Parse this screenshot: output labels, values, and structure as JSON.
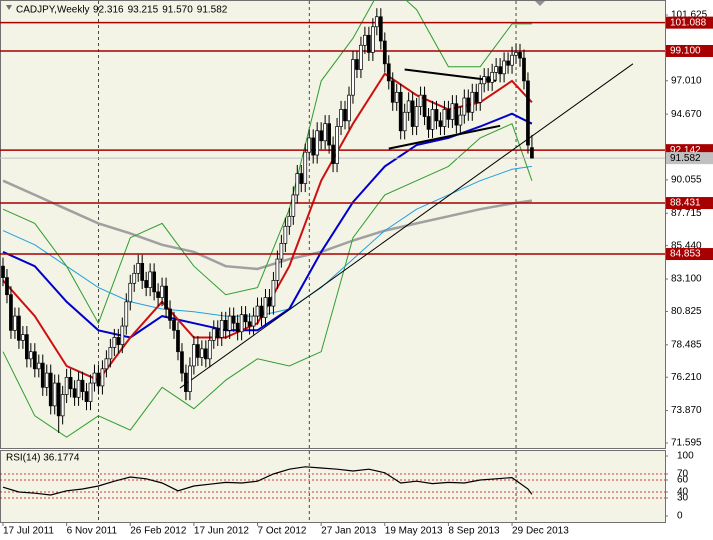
{
  "chart_data": {
    "type": "candlestick",
    "title": "CADJPY,Weekly",
    "header_values": [
      92.316,
      93.215,
      {
        "value": 91.57,
        "label": "91.570"
      },
      91.582
    ],
    "xlim": [
      -0.754,
      166.46
    ],
    "xticks": [
      {
        "value": 0,
        "label": "17 Jul 2011"
      },
      {
        "value": 16,
        "label": "6 Nov 2011"
      },
      {
        "value": 32,
        "label": "26 Feb 2012"
      },
      {
        "value": 48,
        "label": "17 Jun 2012"
      },
      {
        "value": 64,
        "label": "7 Oct 2012"
      },
      {
        "value": 80,
        "label": "27 Jan 2013"
      },
      {
        "value": 96,
        "label": "19 May 2013"
      },
      {
        "value": 112,
        "label": "8 Sep 2013"
      },
      {
        "value": 128,
        "label": "29 Dec 2013"
      }
    ],
    "xgrid": [
      24,
      77,
      129
    ],
    "ylim": [
      71.244,
      102.677
    ],
    "yticks": [
      101.625,
      {
        "value": 97.01,
        "label": "97.010"
      },
      {
        "value": 94.67,
        "label": "94.670"
      },
      90.055,
      87.715,
      {
        "value": 85.44,
        "label": "85.440"
      },
      {
        "value": 83.1,
        "label": "83.100"
      },
      80.825,
      78.485,
      {
        "value": 76.21,
        "label": "76.210"
      },
      {
        "value": 73.87,
        "label": "73.870"
      },
      71.595
    ],
    "open": [
      84.0,
      83.2,
      82.0,
      79.5,
      80.5,
      78.8,
      79.2,
      77.5,
      78.0,
      76.8,
      77.2,
      75.5,
      76.5,
      74.2,
      75.8,
      73.5,
      75.0,
      76.2,
      75.4,
      74.8,
      76.0,
      75.2,
      74.5,
      75.8,
      76.5,
      75.6,
      76.8,
      77.5,
      78.3,
      79.0,
      78.5,
      79.8,
      81.5,
      82.8,
      83.5,
      84.2,
      83.0,
      82.5,
      83.6,
      82.2,
      81.8,
      82.6,
      81.0,
      80.2,
      79.5,
      78.0,
      76.5,
      75.2,
      77.0,
      78.5,
      77.6,
      78.2,
      77.5,
      78.8,
      79.6,
      79.0,
      80.2,
      79.5,
      80.5,
      80.0,
      79.4,
      80.6,
      80.1,
      79.8,
      80.5,
      81.2,
      80.4,
      81.8,
      81.2,
      83.0,
      84.5,
      85.6,
      86.8,
      87.5,
      89.0,
      90.5,
      89.8,
      92.0,
      93.0,
      91.8,
      93.5,
      92.8,
      94.0,
      92.5,
      91.2,
      93.8,
      95.0,
      94.2,
      96.0,
      98.5,
      97.8,
      99.5,
      100.2,
      99.0,
      100.8,
      101.5,
      99.8,
      98.2,
      97.0,
      95.5,
      96.2,
      93.5,
      94.8,
      95.6,
      93.8,
      95.2,
      96.0,
      94.5,
      93.6,
      95.0,
      94.2,
      93.8,
      95.0,
      94.3,
      95.4,
      93.9,
      94.6,
      95.8,
      94.8,
      96.2,
      95.5,
      96.8,
      97.3,
      96.9,
      97.6,
      98.0,
      97.5,
      98.4,
      98.1,
      98.8,
      99.0,
      98.6,
      97.0,
      92.316
    ],
    "high": [
      84.6,
      83.8,
      82.6,
      81.1,
      81.1,
      79.8,
      79.8,
      78.6,
      78.6,
      77.8,
      77.8,
      77.1,
      77.1,
      76.4,
      76.4,
      75.6,
      76.8,
      76.8,
      76.0,
      76.6,
      76.6,
      75.8,
      76.4,
      77.1,
      77.1,
      77.4,
      78.1,
      78.9,
      79.6,
      79.6,
      80.4,
      82.1,
      83.4,
      84.1,
      84.8,
      84.8,
      83.6,
      84.2,
      84.2,
      82.8,
      83.2,
      83.2,
      81.6,
      80.8,
      80.1,
      78.6,
      77.1,
      77.6,
      79.1,
      79.1,
      78.8,
      78.8,
      79.4,
      80.2,
      80.2,
      80.8,
      80.8,
      81.1,
      81.1,
      80.6,
      81.2,
      81.2,
      80.7,
      81.1,
      81.8,
      81.8,
      82.4,
      82.4,
      83.6,
      85.1,
      86.2,
      87.4,
      88.1,
      89.6,
      91.1,
      91.1,
      92.6,
      93.6,
      93.6,
      94.1,
      94.1,
      94.6,
      94.6,
      93.1,
      94.4,
      95.6,
      95.6,
      96.6,
      99.1,
      99.1,
      100.1,
      100.8,
      100.8,
      101.4,
      102.1,
      102.1,
      100.4,
      98.8,
      97.6,
      96.8,
      96.8,
      95.4,
      96.2,
      96.2,
      95.8,
      96.6,
      96.6,
      95.1,
      95.6,
      95.6,
      94.8,
      95.6,
      95.6,
      96.0,
      96.0,
      95.2,
      96.4,
      96.4,
      96.8,
      96.8,
      97.4,
      97.9,
      97.9,
      98.2,
      98.6,
      98.6,
      99.0,
      99.0,
      99.4,
      99.6,
      99.6,
      99.2,
      97.6,
      93.215
    ],
    "low": [
      82.6,
      81.4,
      78.9,
      78.9,
      78.2,
      78.2,
      76.9,
      76.9,
      76.2,
      76.2,
      74.9,
      74.9,
      73.6,
      73.6,
      72.3,
      72.9,
      74.4,
      74.8,
      74.2,
      74.2,
      74.6,
      73.9,
      73.9,
      75.2,
      75.0,
      75.0,
      76.2,
      76.9,
      77.7,
      77.9,
      77.9,
      79.2,
      80.9,
      82.2,
      82.9,
      82.4,
      81.9,
      81.9,
      81.6,
      81.2,
      81.2,
      80.4,
      79.6,
      78.9,
      77.4,
      75.9,
      74.6,
      74.6,
      76.4,
      77.0,
      77.0,
      76.9,
      76.9,
      78.2,
      78.4,
      78.4,
      78.9,
      78.9,
      79.4,
      78.8,
      78.8,
      79.5,
      79.2,
      79.2,
      79.9,
      79.8,
      79.8,
      80.6,
      80.6,
      82.4,
      83.9,
      85.0,
      86.2,
      86.9,
      88.4,
      89.2,
      89.2,
      91.4,
      91.2,
      91.2,
      92.2,
      92.2,
      91.9,
      90.6,
      90.6,
      93.2,
      93.6,
      93.6,
      95.4,
      97.2,
      97.2,
      98.9,
      98.4,
      98.4,
      100.2,
      99.2,
      97.6,
      96.4,
      94.9,
      94.9,
      92.9,
      92.9,
      94.2,
      93.2,
      93.2,
      94.6,
      93.9,
      93.0,
      93.0,
      93.6,
      93.2,
      93.2,
      93.7,
      93.7,
      93.3,
      93.3,
      94.0,
      94.2,
      94.2,
      94.9,
      94.9,
      96.2,
      96.3,
      96.3,
      97.0,
      96.9,
      96.9,
      97.5,
      97.5,
      98.2,
      98.0,
      96.4,
      91.9,
      91.57
    ],
    "close": [
      83.2,
      82.0,
      79.5,
      80.5,
      78.8,
      79.2,
      77.5,
      78.0,
      76.8,
      77.2,
      75.5,
      76.5,
      74.2,
      75.8,
      73.5,
      75.0,
      76.2,
      75.4,
      74.8,
      76.0,
      75.2,
      74.5,
      75.8,
      76.5,
      75.6,
      76.8,
      77.5,
      78.3,
      79.0,
      78.5,
      79.8,
      81.5,
      82.8,
      83.5,
      84.2,
      83.0,
      82.5,
      83.6,
      82.2,
      81.8,
      82.6,
      81.0,
      80.2,
      79.5,
      78.0,
      76.5,
      75.2,
      77.0,
      78.5,
      77.6,
      78.2,
      77.5,
      78.8,
      79.6,
      79.0,
      80.2,
      79.5,
      80.5,
      80.0,
      79.4,
      80.6,
      80.1,
      79.8,
      80.5,
      81.2,
      80.4,
      81.8,
      81.2,
      83.0,
      84.5,
      85.6,
      86.8,
      87.5,
      89.0,
      90.5,
      89.8,
      92.0,
      93.0,
      91.8,
      93.5,
      92.8,
      94.0,
      92.5,
      91.2,
      93.8,
      95.0,
      94.2,
      96.0,
      98.5,
      97.8,
      99.5,
      100.2,
      99.0,
      100.8,
      101.5,
      99.8,
      98.2,
      97.0,
      95.5,
      96.2,
      93.5,
      94.8,
      95.6,
      93.8,
      95.2,
      96.0,
      94.5,
      93.6,
      95.0,
      94.2,
      93.8,
      95.0,
      94.3,
      95.4,
      93.9,
      94.6,
      95.8,
      94.8,
      96.2,
      95.5,
      96.8,
      97.3,
      96.9,
      97.6,
      98.0,
      97.5,
      98.4,
      98.1,
      98.8,
      99.0,
      98.6,
      97.0,
      92.5,
      91.582
    ],
    "levels": [
      {
        "value": 101.088,
        "color": "#a80000"
      },
      {
        "value": 99.1,
        "label": "99.100",
        "color": "#a80000"
      },
      {
        "value": 92.142,
        "color": "#a80000"
      },
      {
        "value": 88.431,
        "color": "#a80000"
      },
      {
        "value": 84.853,
        "color": "#a80000"
      }
    ],
    "last_price": {
      "value": 91.582,
      "color": "#c0c0c0"
    },
    "overlays": [
      {
        "color": "#a0a0a0",
        "width": 2.5,
        "x": [
          0,
          8,
          16,
          24,
          32,
          40,
          48,
          56,
          64,
          72,
          80,
          88,
          96,
          104,
          112,
          120,
          128,
          133
        ],
        "values": [
          90,
          89,
          88,
          87,
          86.3,
          85.5,
          85,
          84,
          83.8,
          84.5,
          85,
          85.8,
          86.5,
          87,
          87.5,
          88,
          88.4,
          88.6
        ]
      },
      {
        "color": "#22a0e0",
        "width": 1,
        "x": [
          0,
          8,
          16,
          24,
          32,
          40,
          48,
          56,
          64,
          72,
          80,
          88,
          96,
          104,
          112,
          120,
          128,
          133
        ],
        "values": [
          86.5,
          85.5,
          84,
          82.5,
          81.5,
          81,
          80.8,
          80.5,
          80.5,
          81,
          82.5,
          84.5,
          86.5,
          88,
          89,
          90,
          90.8,
          91
        ]
      },
      {
        "color": "#2e9e2e",
        "width": 1,
        "x": [
          0,
          8,
          16,
          24,
          32,
          40,
          48,
          56,
          64,
          72,
          80,
          88,
          96,
          104,
          112,
          120,
          128,
          133
        ],
        "values": [
          88,
          87,
          84,
          80,
          86,
          87,
          84,
          82,
          82.5,
          88,
          97,
          100,
          104,
          102,
          98,
          98,
          101,
          101
        ]
      },
      {
        "color": "#2e9e2e",
        "width": 1,
        "x": [
          0,
          8,
          16,
          24,
          32,
          40,
          48,
          56,
          64,
          72,
          80,
          88,
          96,
          104,
          112,
          120,
          128,
          133
        ],
        "values": [
          78,
          73.5,
          72,
          73.5,
          72.5,
          75.5,
          74,
          76,
          77.5,
          77,
          78,
          86,
          89,
          90,
          91,
          93,
          94,
          90
        ]
      },
      {
        "color": "#0000cc",
        "width": 2,
        "x": [
          0,
          8,
          16,
          24,
          32,
          40,
          48,
          56,
          64,
          72,
          80,
          88,
          96,
          104,
          112,
          120,
          128,
          133
        ],
        "values": [
          85,
          84,
          81.5,
          79.5,
          79,
          80.5,
          80,
          79.5,
          79.5,
          81,
          85,
          88.5,
          91,
          92.5,
          93,
          93.8,
          94.7,
          94
        ]
      },
      {
        "color": "#cc1010",
        "width": 2,
        "x": [
          0,
          8,
          16,
          24,
          32,
          40,
          48,
          56,
          64,
          72,
          80,
          88,
          96,
          104,
          112,
          120,
          128,
          133
        ],
        "values": [
          83,
          80.5,
          77,
          76,
          79,
          81.5,
          79,
          79,
          80,
          84,
          90,
          94,
          97.5,
          96,
          95,
          95.5,
          97,
          95.5
        ]
      }
    ],
    "trendlines": [
      {
        "x": [
          101,
          124
        ],
        "y": [
          97.8,
          97.0
        ]
      },
      {
        "x": [
          97,
          125
        ],
        "y": [
          92.25,
          93.85
        ]
      },
      {
        "x": [
          44.5,
          158.4
        ],
        "y": [
          75.45,
          98.2
        ]
      }
    ],
    "rsi": {
      "title": "RSI(14) 36.1774",
      "ylim": [
        -11.7,
        110
      ],
      "yticks": [
        0,
        30,
        40,
        60,
        70,
        100
      ],
      "levels": [
        30,
        40,
        60,
        70
      ],
      "color": "#000000",
      "x": [
        0,
        4,
        8,
        12,
        16,
        20,
        24,
        28,
        32,
        36,
        40,
        44,
        48,
        52,
        56,
        60,
        64,
        68,
        72,
        76,
        80,
        84,
        88,
        92,
        96,
        100,
        104,
        108,
        112,
        116,
        120,
        124,
        128,
        132,
        133
      ],
      "values": [
        48,
        40,
        38,
        35,
        42,
        45,
        50,
        58,
        65,
        62,
        55,
        42,
        50,
        53,
        56,
        55,
        58,
        70,
        78,
        82,
        80,
        78,
        75,
        78,
        72,
        55,
        58,
        54,
        56,
        55,
        60,
        62,
        64,
        45,
        36.18
      ]
    }
  }
}
